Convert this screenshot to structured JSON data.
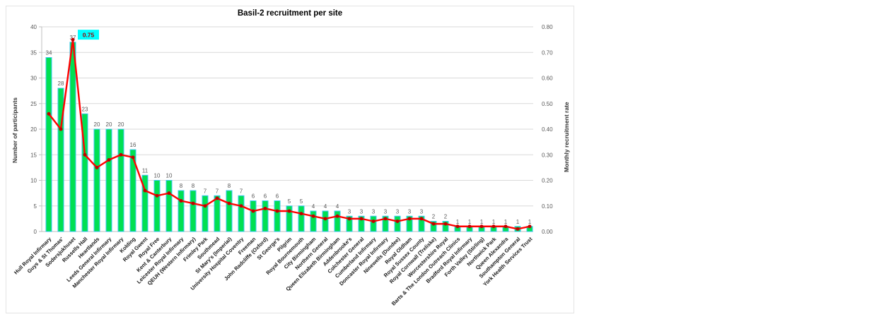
{
  "chart_data": {
    "type": "combo-bar-line",
    "title": "Basil-2 recruitment per site",
    "categories": [
      "Hull Royal Infirmary",
      "Guys & St Thomas'",
      "Sodersjukhuset",
      "Russells Hall",
      "Heartlands",
      "Leeds General Infirmary",
      "Manchester Royal Infirmary",
      "Kolding",
      "Royal Gwent",
      "Royal Free",
      "Kent & Canterbury",
      "Leicester Royal Infirmary",
      "QEUH (Western Infirmary)",
      "Frimley Park",
      "Southmead",
      "St Mary's (Imperial)",
      "University Hospital Coventry",
      "Freeman",
      "John Radcliffe (Oxford)",
      "St George's",
      "Pilgrim",
      "Royal Bournemouth",
      "City Birmingham",
      "Northern General",
      "Queen Elizabeth Birmingham",
      "Addenbrooke's",
      "Colchester General",
      "Cumberland Infirmary",
      "Doncaster Royal Infirmary",
      "Ninewells (Dundee)",
      "Royal Oldham",
      "Royal Sussex County",
      "Royal Cornwall (Treliske)",
      "Worcestershire Royal",
      "Barts & The London Outreach Clinics",
      "Bradford Royal Infirmary",
      "Forth Valley (Stirling)",
      "Northwick Park",
      "Queen Alexandra",
      "Southampton General",
      "York Health Services Trust"
    ],
    "series": [
      {
        "name": "Number of participants",
        "type": "bar",
        "axis": "left",
        "fill_color": "#00e052",
        "border_color": "#3bc6f2",
        "values": [
          34,
          28,
          37,
          23,
          20,
          20,
          20,
          16,
          11,
          10,
          10,
          8,
          8,
          7,
          7,
          8,
          7,
          6,
          6,
          6,
          5,
          5,
          4,
          4,
          4,
          3,
          3,
          3,
          3,
          3,
          3,
          3,
          2,
          2,
          1,
          1,
          1,
          1,
          1,
          1,
          1
        ]
      },
      {
        "name": "Monthly recruitment rate",
        "type": "line",
        "axis": "right",
        "line_color": "#ff0000",
        "marker_color": "#c00000",
        "values": [
          0.46,
          0.4,
          0.75,
          0.3,
          0.25,
          0.28,
          0.3,
          0.29,
          0.16,
          0.14,
          0.15,
          0.12,
          0.11,
          0.1,
          0.13,
          0.11,
          0.1,
          0.08,
          0.09,
          0.08,
          0.08,
          0.07,
          0.06,
          0.05,
          0.06,
          0.05,
          0.05,
          0.04,
          0.05,
          0.04,
          0.05,
          0.05,
          0.03,
          0.03,
          0.02,
          0.02,
          0.02,
          0.02,
          0.02,
          0.01,
          0.02
        ]
      }
    ],
    "left_axis": {
      "title": "Number of participants",
      "min": 0,
      "max": 40,
      "step": 5,
      "ticks": [
        "0",
        "5",
        "10",
        "15",
        "20",
        "25",
        "30",
        "35",
        "40"
      ]
    },
    "right_axis": {
      "title": "Monthly recruitment rate",
      "min": 0.0,
      "max": 0.8,
      "step": 0.1,
      "ticks": [
        "0.00",
        "0.10",
        "0.20",
        "0.30",
        "0.40",
        "0.50",
        "0.60",
        "0.70",
        "0.80"
      ]
    },
    "annotation": {
      "text": "0.75",
      "target_index": 2,
      "bg_color": "#00ffff",
      "text_color": "#9c0006"
    },
    "grid": true,
    "gridline_color": "#d9d9d9",
    "axis_line_color": "#bfbfbf",
    "legend": "none",
    "x_label_rotation": -45
  }
}
